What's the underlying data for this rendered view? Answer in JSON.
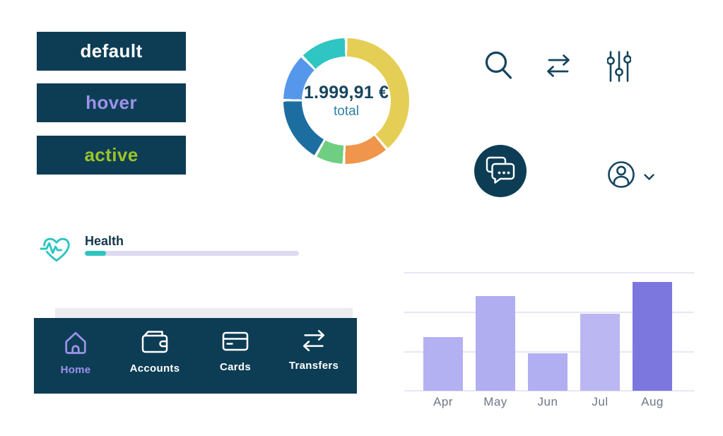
{
  "palette": {
    "navy": "#0D3D55",
    "icon_navy": "#15455E",
    "accent_purple": "#9D92EA",
    "accent_lime": "#9CC427",
    "accent_teal": "#2EC5C0",
    "backdrop_gray": "#ECEBED"
  },
  "buttons": {
    "items": [
      {
        "label": "default",
        "state": "default",
        "text_color": "#FFFFFF"
      },
      {
        "label": "hover",
        "state": "hover",
        "text_color": "#9D92EA"
      },
      {
        "label": "active",
        "state": "active",
        "text_color": "#9CC427"
      }
    ]
  },
  "toolbar": {
    "icons": [
      {
        "name": "search-icon"
      },
      {
        "name": "transfer-arrows-icon"
      },
      {
        "name": "filter-sliders-icon"
      }
    ]
  },
  "fab": {
    "name": "chat-fab",
    "icon": "chat-bubbles-icon",
    "bg": "#0D3D55"
  },
  "account_menu": {
    "icon": "user-avatar-icon",
    "chevron": "chevron-down-icon"
  },
  "health": {
    "label": "Health",
    "icon": "heart-pulse-icon",
    "progress_percent": 10,
    "track_color": "#DCD9F0",
    "fill_color": "#2EC5BE"
  },
  "bottom_nav": {
    "bg": "#0D3D55",
    "active_color": "#9D92EA",
    "inactive_color": "#FFFFFF",
    "items": [
      {
        "label": "Home",
        "icon": "home-icon",
        "active": true
      },
      {
        "label": "Accounts",
        "icon": "wallet-icon",
        "active": false
      },
      {
        "label": "Cards",
        "icon": "credit-card-icon",
        "active": false
      },
      {
        "label": "Transfers",
        "icon": "transfer-arrows-icon",
        "active": false
      }
    ]
  },
  "chart_data": [
    {
      "type": "pie",
      "subtype": "donut",
      "center_value": "1.999,91 €",
      "center_label": "total",
      "gap_color": "#FFFFFF",
      "segments": [
        {
          "name": "yellow",
          "color": "#E5CE55",
          "start_deg": 1,
          "end_deg": 138.5,
          "percent": 38.5
        },
        {
          "name": "orange",
          "color": "#F0964C",
          "start_deg": 141,
          "end_deg": 181,
          "percent": 11
        },
        {
          "name": "green",
          "color": "#6FCE82",
          "start_deg": 183.5,
          "end_deg": 208,
          "percent": 7
        },
        {
          "name": "dark-blue",
          "color": "#1C6EA0",
          "start_deg": 210.5,
          "end_deg": 269.5,
          "percent": 16.5
        },
        {
          "name": "light-blue",
          "color": "#5598EB",
          "start_deg": 272,
          "end_deg": 314,
          "percent": 11.5
        },
        {
          "name": "turquoise",
          "color": "#2FC5C2",
          "start_deg": 316.5,
          "end_deg": 358.5,
          "percent": 11.5
        }
      ]
    },
    {
      "type": "bar",
      "categories": [
        "Apr",
        "May",
        "Jun",
        "Jul",
        "Aug"
      ],
      "values": [
        1.35,
        2.4,
        0.95,
        1.95,
        2.75
      ],
      "ylim": [
        0,
        3
      ],
      "gridlines": [
        0,
        1,
        2,
        3
      ],
      "grid_on": true,
      "bar_colors": [
        "#B4B1F2",
        "#B0ADF0",
        "#B1AEF1",
        "#BAB7F3",
        "#7C77DF"
      ],
      "highlight_category": "Aug",
      "label_color": "#6E7787",
      "grid_color": "#E7E5F7",
      "title": "",
      "xlabel": "",
      "ylabel": ""
    }
  ]
}
